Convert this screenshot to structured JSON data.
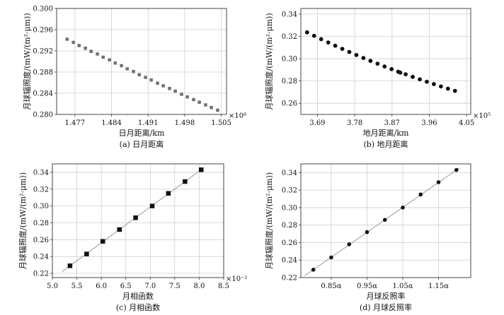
{
  "chart_data": [
    {
      "type": "scatter",
      "caption": "(a) 日月距离",
      "xlabel": "日月距离/km",
      "ylabel": "月球辐照度/(mW/(m²·μm))",
      "x_multiplier": "×10⁸",
      "xlim": [
        1.4735,
        1.506
      ],
      "ylim": [
        0.28,
        0.3
      ],
      "xticks": [
        "1.477",
        "1.484",
        "1.491",
        "1.498",
        "1.505"
      ],
      "yticks": [
        "0.280",
        "0.284",
        "0.288",
        "0.292",
        "0.296",
        "0.300"
      ],
      "marker": "square",
      "marker_color": "#707070",
      "fit_line": false,
      "series": [
        {
          "x": [
            1.4755,
            1.4767,
            1.4778,
            1.479,
            1.4801,
            1.4813,
            1.4824,
            1.4836,
            1.4847,
            1.4859,
            1.487,
            1.4882,
            1.4893,
            1.4905,
            1.4916,
            1.4928,
            1.4939,
            1.4951,
            1.4962,
            1.4974,
            1.4985,
            1.4997,
            1.5008,
            1.502,
            1.5031,
            1.5043
          ],
          "y": [
            0.2942,
            0.2936,
            0.293,
            0.2925,
            0.2919,
            0.2914,
            0.2908,
            0.2903,
            0.2897,
            0.2892,
            0.2886,
            0.2881,
            0.2875,
            0.287,
            0.2865,
            0.2859,
            0.2854,
            0.2849,
            0.2844,
            0.2838,
            0.2833,
            0.2828,
            0.2823,
            0.2818,
            0.2813,
            0.2808
          ]
        }
      ]
    },
    {
      "type": "scatter",
      "caption": "(b) 地月距离",
      "xlabel": "地月距离/km",
      "ylabel": "月球辐照度/(mW/(m²·μm))",
      "x_multiplier": "×10⁵",
      "xlim": [
        3.65,
        4.06
      ],
      "ylim": [
        0.25,
        0.345
      ],
      "xticks": [
        "3.69",
        "3.78",
        "3.87",
        "3.96",
        "4.05"
      ],
      "yticks": [
        "0.26",
        "0.28",
        "0.30",
        "0.32",
        "0.34"
      ],
      "marker": "circle",
      "marker_color": "#111111",
      "fit_line": false,
      "series": [
        {
          "x": [
            3.665,
            3.682,
            3.699,
            3.716,
            3.733,
            3.75,
            3.767,
            3.784,
            3.801,
            3.818,
            3.835,
            3.852,
            3.869,
            3.885,
            3.89,
            3.903,
            3.92,
            3.937,
            3.954,
            3.971,
            3.988,
            4.005,
            4.022
          ],
          "y": [
            0.3236,
            0.3205,
            0.3175,
            0.3145,
            0.3116,
            0.3088,
            0.306,
            0.3033,
            0.3006,
            0.298,
            0.2955,
            0.293,
            0.2906,
            0.2883,
            0.2875,
            0.286,
            0.2837,
            0.2815,
            0.2793,
            0.2772,
            0.2751,
            0.2731,
            0.2711
          ]
        }
      ]
    },
    {
      "type": "scatter",
      "caption": "(c) 月相函数",
      "xlabel": "月相函数",
      "ylabel": "月球辐照度/(mW/(m²·μm))",
      "x_multiplier": "×10⁻²",
      "xlim": [
        5.0,
        8.5
      ],
      "ylim": [
        0.215,
        0.35
      ],
      "xticks": [
        "5.0",
        "5.5",
        "6.0",
        "6.5",
        "7.0",
        "7.5",
        "8.0",
        "8.5"
      ],
      "yticks": [
        "0.22",
        "0.24",
        "0.26",
        "0.28",
        "0.30",
        "0.32",
        "0.34"
      ],
      "marker": "square",
      "marker_color": "#111111",
      "fit_line": true,
      "series": [
        {
          "x": [
            5.36,
            5.7,
            6.03,
            6.37,
            6.7,
            7.04,
            7.37,
            7.71,
            8.04
          ],
          "y": [
            0.229,
            0.243,
            0.258,
            0.272,
            0.286,
            0.3,
            0.315,
            0.329,
            0.343
          ]
        }
      ]
    },
    {
      "type": "scatter",
      "caption": "(d) 月球反照率",
      "xlabel": "月球反照率",
      "ylabel": "月球辐照度/(mW/(m²·μm))",
      "x_multiplier": "",
      "xlim": [
        0.765,
        1.24
      ],
      "ylim": [
        0.22,
        0.35
      ],
      "xticks": [
        "0.85α",
        "0.95α",
        "1.05α",
        "1.15α"
      ],
      "yticks": [
        "0.22",
        "0.24",
        "0.26",
        "0.28",
        "0.30",
        "0.32",
        "0.34"
      ],
      "marker": "circle",
      "marker_color": "#111111",
      "fit_line": true,
      "series": [
        {
          "x": [
            0.8,
            0.85,
            0.9,
            0.95,
            1.0,
            1.05,
            1.1,
            1.15,
            1.2
          ],
          "y": [
            0.229,
            0.243,
            0.258,
            0.272,
            0.286,
            0.3,
            0.315,
            0.329,
            0.343
          ]
        }
      ]
    }
  ]
}
